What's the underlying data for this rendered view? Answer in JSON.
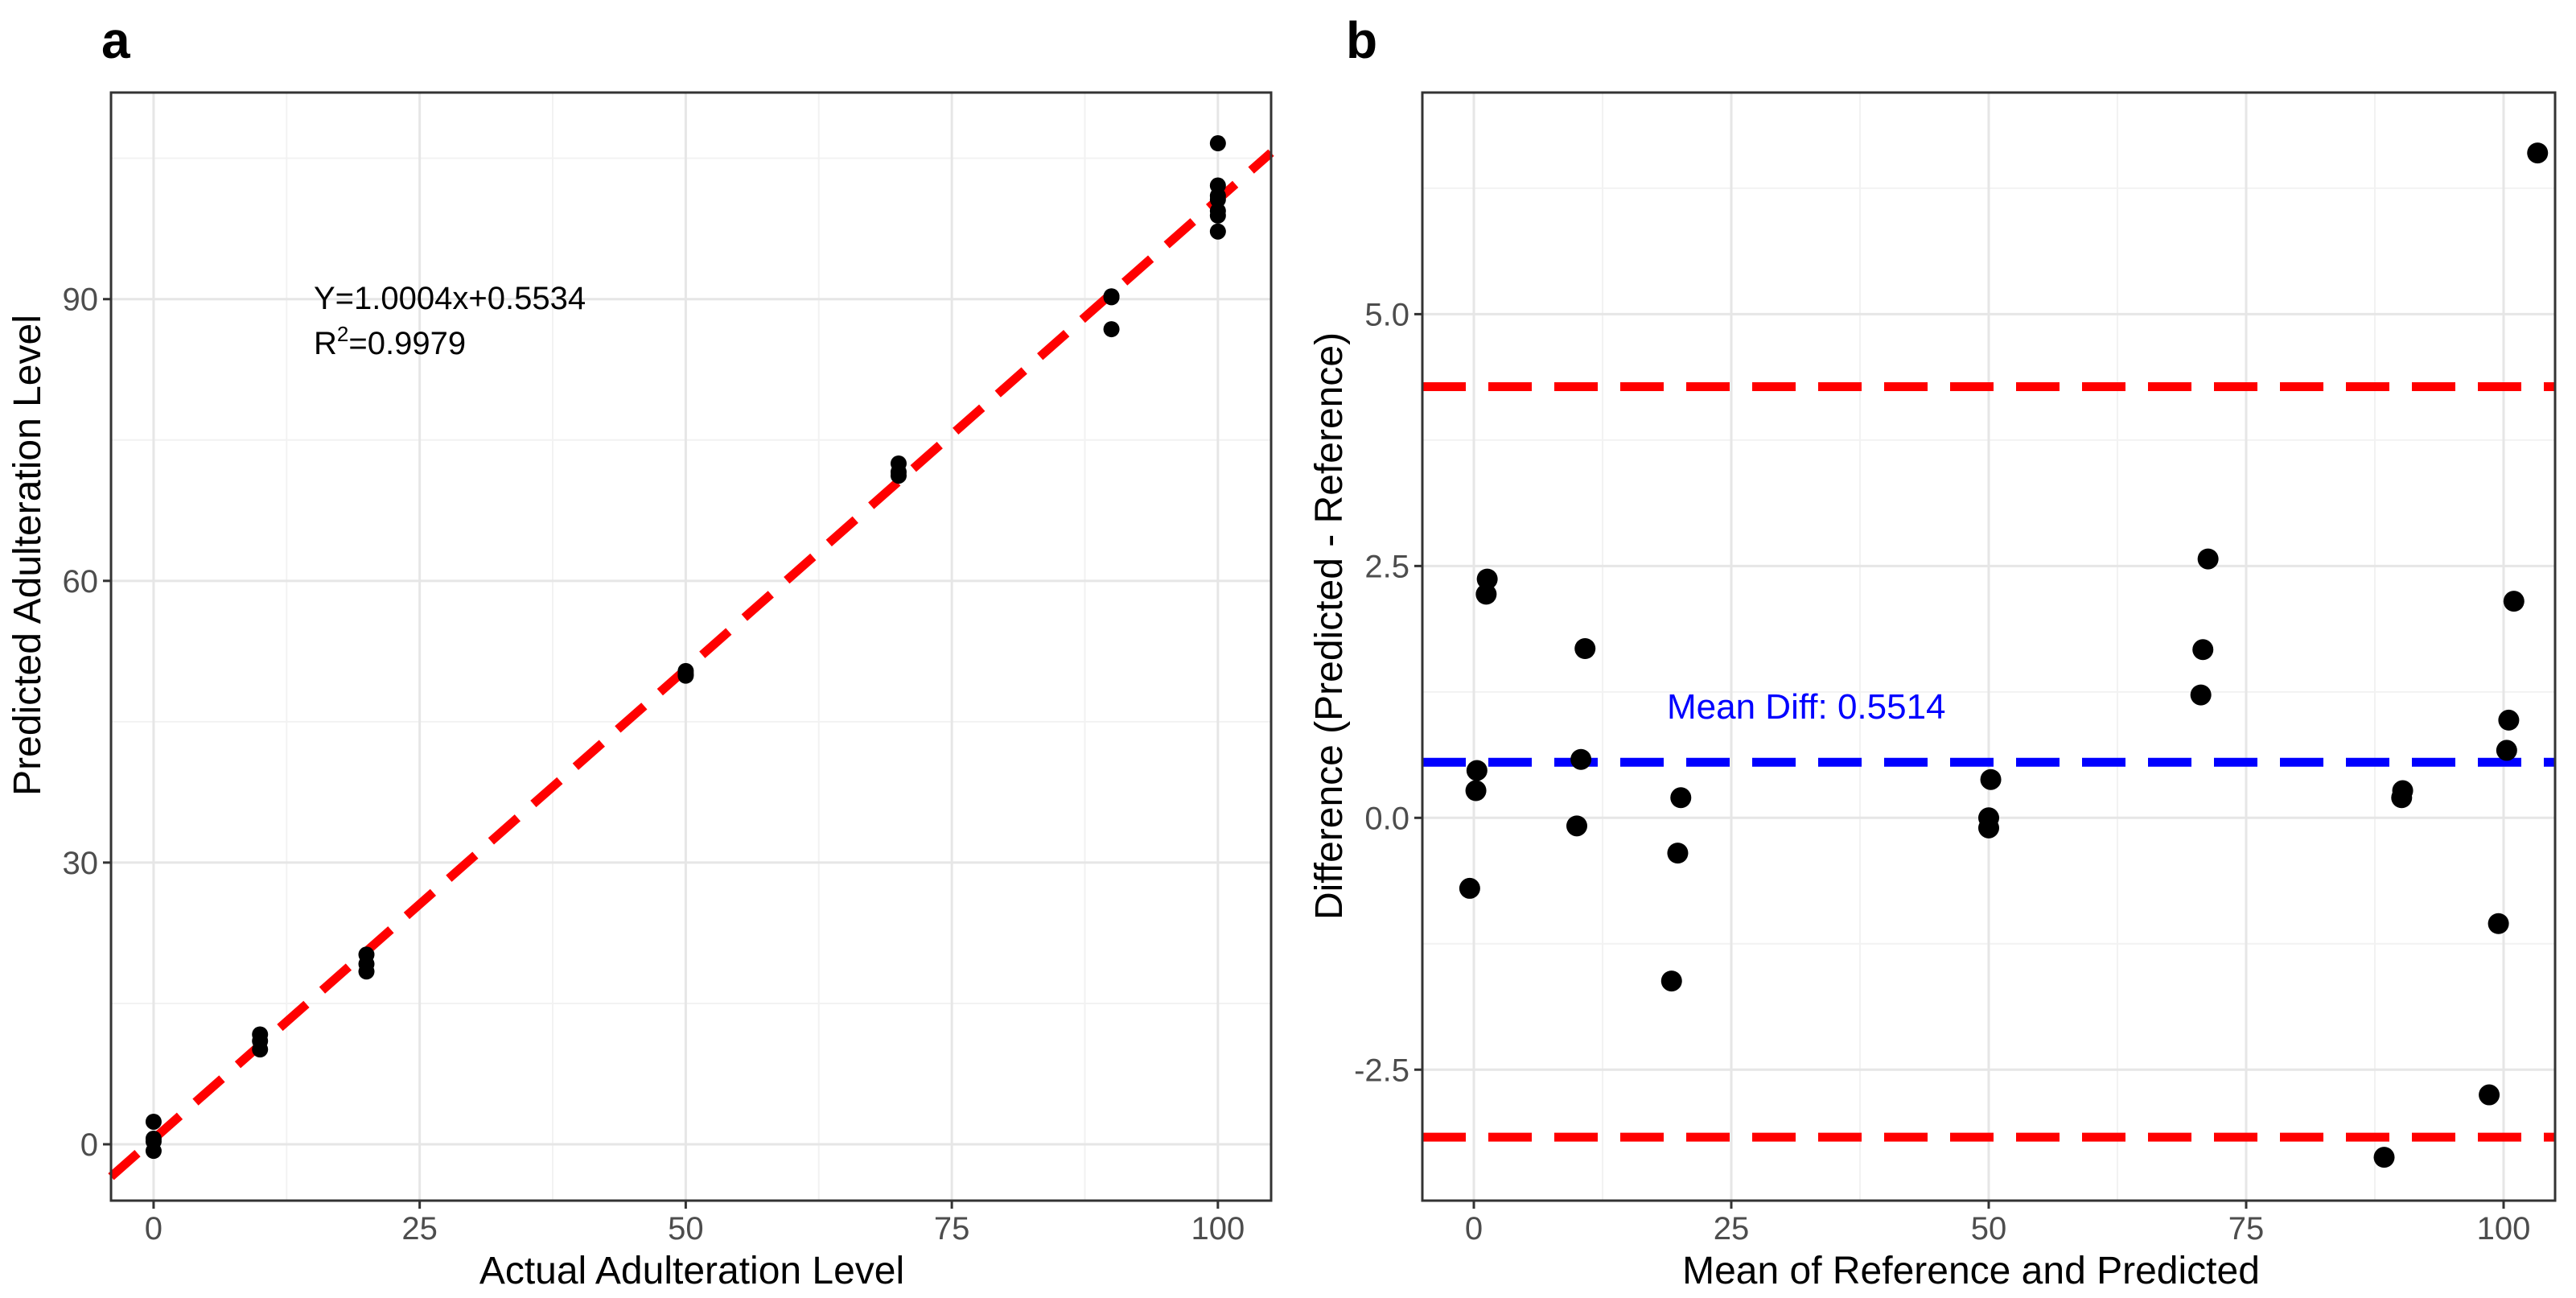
{
  "chart_data": [
    {
      "panel": "a",
      "type": "scatter",
      "xlabel": "Actual Adulteration Level",
      "ylabel": "Predicted Adulteration Level",
      "xlim": [
        -4,
        105
      ],
      "ylim": [
        -6,
        112
      ],
      "xticks": [
        0,
        25,
        50,
        75,
        100
      ],
      "yticks": [
        0,
        30,
        60,
        90
      ],
      "grid": true,
      "equation": "Y=1.0004x+0.5534",
      "r2_prefix": "R",
      "r2_sup": "2",
      "r2_value": "=0.9979",
      "fit_line": {
        "slope": 1.0004,
        "intercept": 0.5534,
        "color": "#ff0000",
        "style": "dashed"
      },
      "points": [
        [
          0,
          -0.7
        ],
        [
          0,
          0.3
        ],
        [
          0,
          0.6
        ],
        [
          0,
          2.4
        ],
        [
          10,
          10.1
        ],
        [
          10,
          11.0
        ],
        [
          10,
          11.7
        ],
        [
          20,
          18.4
        ],
        [
          20,
          19.2
        ],
        [
          20,
          20.2
        ],
        [
          50,
          49.9
        ],
        [
          50,
          50.1
        ],
        [
          50,
          50.4
        ],
        [
          70,
          71.2
        ],
        [
          70,
          71.6
        ],
        [
          70,
          72.5
        ],
        [
          90,
          86.8
        ],
        [
          90,
          90.2
        ],
        [
          90,
          90.3
        ],
        [
          100,
          97.2
        ],
        [
          100,
          98.9
        ],
        [
          100,
          99.4
        ],
        [
          100,
          100.6
        ],
        [
          100,
          101.0
        ],
        [
          100,
          102.1
        ],
        [
          100,
          106.6
        ]
      ]
    },
    {
      "panel": "b",
      "type": "scatter",
      "xlabel": "Mean of Reference and Predicted",
      "ylabel": "Difference (Predicted - Reference)",
      "xlim": [
        -5,
        105
      ],
      "ylim": [
        -3.8,
        7.2
      ],
      "xticks": [
        0,
        25,
        50,
        75,
        100
      ],
      "yticks": [
        -2.5,
        0.0,
        2.5,
        5.0
      ],
      "ytick_labels": [
        "-2.5",
        "0.0",
        "2.5",
        "5.0"
      ],
      "grid": true,
      "mean_diff_label": "Mean Diff: 0.5514",
      "mean_line": {
        "value": 0.5514,
        "color": "#0000ff",
        "style": "dashed"
      },
      "limit_lines": [
        {
          "value": 4.28,
          "color": "#ff0000",
          "style": "dashed"
        },
        {
          "value": -3.17,
          "color": "#ff0000",
          "style": "dashed"
        }
      ],
      "points": [
        [
          -0.4,
          -0.7
        ],
        [
          0.2,
          0.27
        ],
        [
          0.3,
          0.47
        ],
        [
          1.2,
          2.22
        ],
        [
          1.3,
          2.37
        ],
        [
          10.0,
          -0.08
        ],
        [
          10.4,
          0.58
        ],
        [
          10.8,
          1.68
        ],
        [
          19.2,
          -1.62
        ],
        [
          19.8,
          -0.35
        ],
        [
          20.1,
          0.2
        ],
        [
          50.0,
          -0.1
        ],
        [
          50.0,
          0.0
        ],
        [
          50.2,
          0.38
        ],
        [
          70.6,
          1.22
        ],
        [
          70.8,
          1.67
        ],
        [
          71.3,
          2.57
        ],
        [
          88.4,
          -3.37
        ],
        [
          90.1,
          0.2
        ],
        [
          90.2,
          0.27
        ],
        [
          98.6,
          -2.75
        ],
        [
          99.5,
          -1.05
        ],
        [
          100.3,
          0.67
        ],
        [
          100.5,
          0.97
        ],
        [
          101.0,
          2.15
        ],
        [
          103.3,
          6.6
        ]
      ]
    }
  ]
}
